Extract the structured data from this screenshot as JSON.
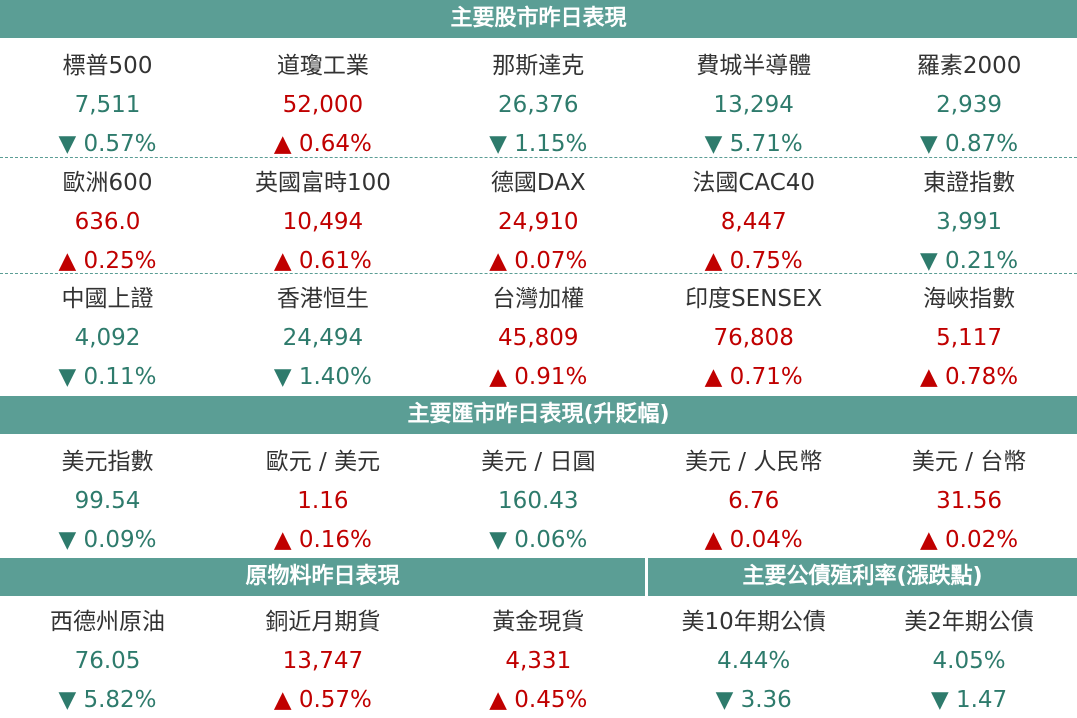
{
  "colors": {
    "header": "#5b9e95",
    "name": "#333333",
    "separator": "#5b9e95"
  },
  "sections": [
    {
      "title": "主要股市昨日表現",
      "rows": [
        [
          {
            "name": "標普500",
            "value": "7,511",
            "change": "▼ 0.57%",
            "color": "#2e7b6c"
          },
          {
            "name": "道瓊工業",
            "value": "52,000",
            "change": "▲ 0.64%",
            "color": "#c00000"
          },
          {
            "name": "那斯達克",
            "value": "26,376",
            "change": "▼ 1.15%",
            "color": "#2e7b6c"
          },
          {
            "name": "費城半導體",
            "value": "13,294",
            "change": "▼ 5.71%",
            "color": "#2e7b6c"
          },
          {
            "name": "羅素2000",
            "value": "2,939",
            "change": "▼ 0.87%",
            "color": "#2e7b6c"
          }
        ],
        [
          {
            "name": "歐洲600",
            "value": "636.0",
            "change": "▲ 0.25%",
            "color": "#c00000"
          },
          {
            "name": "英國富時100",
            "value": "10,494",
            "change": "▲ 0.61%",
            "color": "#c00000"
          },
          {
            "name": "德國DAX",
            "value": "24,910",
            "change": "▲ 0.07%",
            "color": "#c00000"
          },
          {
            "name": "法國CAC40",
            "value": "8,447",
            "change": "▲ 0.75%",
            "color": "#c00000"
          },
          {
            "name": "東證指數",
            "value": "3,991",
            "change": "▼ 0.21%",
            "color": "#2e7b6c"
          }
        ],
        [
          {
            "name": "中國上證",
            "value": "4,092",
            "change": "▼ 0.11%",
            "color": "#2e7b6c"
          },
          {
            "name": "香港恒生",
            "value": "24,494",
            "change": "▼ 1.40%",
            "color": "#2e7b6c"
          },
          {
            "name": "台灣加權",
            "value": "45,809",
            "change": "▲ 0.91%",
            "color": "#c00000"
          },
          {
            "name": "印度SENSEX",
            "value": "76,808",
            "change": "▲ 0.71%",
            "color": "#c00000"
          },
          {
            "name": "海峽指數",
            "value": "5,117",
            "change": "▲ 0.78%",
            "color": "#c00000"
          }
        ]
      ]
    },
    {
      "title": "主要匯市昨日表現(升貶幅)",
      "rows": [
        [
          {
            "name": "美元指數",
            "value": "99.54",
            "change": "▼ 0.09%",
            "color": "#2e7b6c"
          },
          {
            "name": "歐元 / 美元",
            "value": "1.16",
            "change": "▲ 0.16%",
            "color": "#c00000"
          },
          {
            "name": "美元 / 日圓",
            "value": "160.43",
            "change": "▼ 0.06%",
            "color": "#2e7b6c"
          },
          {
            "name": "美元 / 人民幣",
            "value": "6.76",
            "change": "▲ 0.04%",
            "color": "#c00000"
          },
          {
            "name": "美元 / 台幣",
            "value": "31.56",
            "change": "▲ 0.02%",
            "color": "#c00000"
          }
        ]
      ]
    }
  ],
  "commodities": {
    "title": "原物料昨日表現",
    "items": [
      {
        "name": "西德州原油",
        "value": "76.05",
        "change": "▼ 5.82%",
        "color": "#2e7b6c"
      },
      {
        "name": "銅近月期貨",
        "value": "13,747",
        "change": "▲ 0.57%",
        "color": "#c00000"
      },
      {
        "name": "黃金現貨",
        "value": "4,331",
        "change": "▲ 0.45%",
        "color": "#c00000"
      }
    ]
  },
  "bonds": {
    "title": "主要公債殖利率(漲跌點)",
    "items": [
      {
        "name": "美10年期公債",
        "value": "4.44%",
        "change": "▼ 3.36",
        "color": "#2e7b6c"
      },
      {
        "name": "美2年期公債",
        "value": "4.05%",
        "change": "▼ 1.47",
        "color": "#2e7b6c"
      }
    ]
  }
}
